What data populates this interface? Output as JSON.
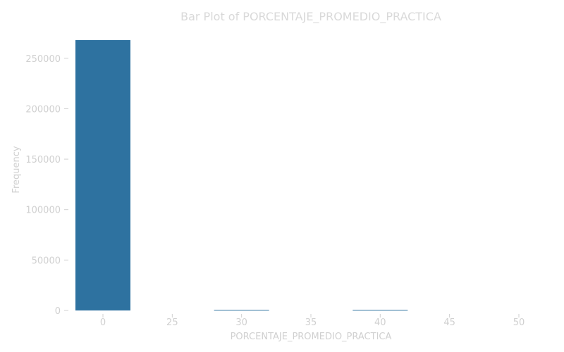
{
  "chart_data": {
    "type": "bar",
    "title": "Bar Plot of PORCENTAJE_PROMEDIO_PRACTICA",
    "xlabel": "PORCENTAJE_PROMEDIO_PRACTICA",
    "ylabel": "Frequency",
    "categories": [
      "0",
      "25",
      "30",
      "35",
      "40",
      "45",
      "50"
    ],
    "values": [
      268000,
      0,
      500,
      0,
      500,
      0,
      0
    ],
    "ylim": [
      0,
      268000
    ],
    "yticks": [
      0,
      50000,
      100000,
      150000,
      200000,
      250000
    ],
    "ytick_labels": [
      "0",
      "50000",
      "100000",
      "150000",
      "200000",
      "250000"
    ],
    "grid": false,
    "bar_color": "#2e72a0"
  }
}
